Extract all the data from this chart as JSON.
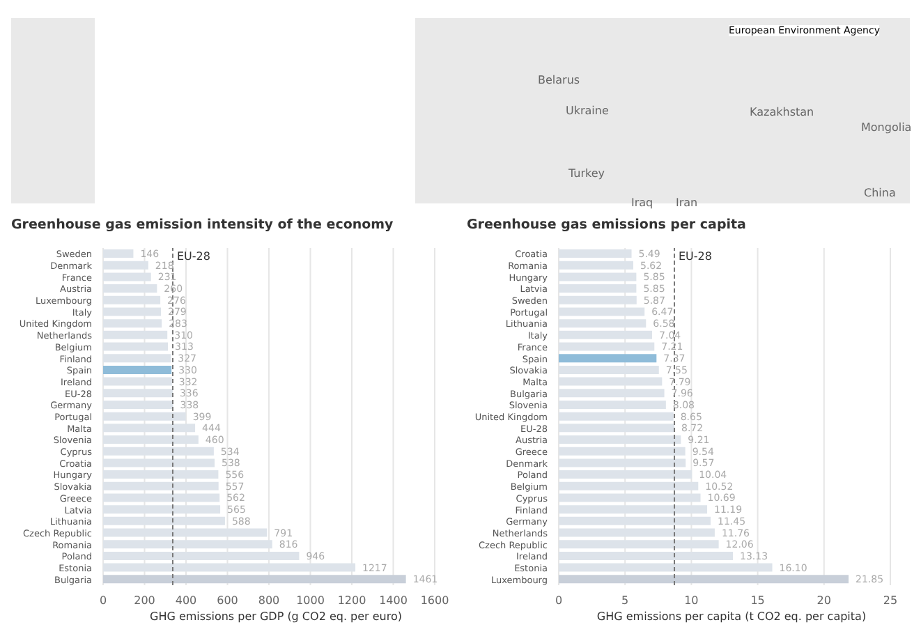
{
  "chart_data": [
    {
      "type": "other",
      "annotations": [
        "European Environment Agency",
        "Belarus",
        "Ukraine",
        "Kazakhstan",
        "Mongolia",
        "Turkey",
        "Iraq",
        "Iran",
        "China"
      ]
    },
    {
      "type": "bar",
      "orientation": "horizontal",
      "title": "Greenhouse gas emission intensity of the economy",
      "xlabel": "GHG emissions per GDP (g CO2 eq. per euro)",
      "categories": [
        "Sweden",
        "Denmark",
        "France",
        "Austria",
        "Luxembourg",
        "Italy",
        "United Kingdom",
        "Netherlands",
        "Belgium",
        "Finland",
        "Spain",
        "Ireland",
        "EU-28",
        "Germany",
        "Portugal",
        "Malta",
        "Slovenia",
        "Cyprus",
        "Croatia",
        "Hungary",
        "Slovakia",
        "Greece",
        "Latvia",
        "Lithuania",
        "Czech Republic",
        "Romania",
        "Poland",
        "Estonia",
        "Bulgaria"
      ],
      "values": [
        146,
        218,
        231,
        260,
        276,
        279,
        283,
        310,
        313,
        327,
        330,
        332,
        336,
        338,
        399,
        444,
        460,
        534,
        538,
        556,
        557,
        562,
        565,
        588,
        791,
        816,
        946,
        1217,
        1461
      ],
      "colors": [
        "#dde3ea",
        "#dde3ea",
        "#dde3ea",
        "#dde3ea",
        "#dde3ea",
        "#dde3ea",
        "#dde3ea",
        "#dde3ea",
        "#dde3ea",
        "#dde3ea",
        "#8fbcd9",
        "#dde3ea",
        "#dde3ea",
        "#dde3ea",
        "#dde3ea",
        "#dde3ea",
        "#dde3ea",
        "#dde3ea",
        "#dde3ea",
        "#dde3ea",
        "#dde3ea",
        "#dde3ea",
        "#dde3ea",
        "#dde3ea",
        "#dde3ea",
        "#dde3ea",
        "#dde3ea",
        "#dde3ea",
        "#c8cfd9"
      ],
      "xlim": [
        0,
        1600
      ],
      "xticks": [
        0,
        200,
        400,
        600,
        800,
        1000,
        1200,
        1400,
        1600
      ],
      "grid": "x",
      "data_labels": true,
      "ref_lines": [
        {
          "axis": "x",
          "value": 336,
          "label": "EU-28",
          "color": "#777777",
          "line_style": "dashed"
        }
      ]
    },
    {
      "type": "bar",
      "orientation": "horizontal",
      "title": "Greenhouse gas emissions per capita",
      "xlabel": "GHG emissions per capita (t CO2 eq. per capita)",
      "categories": [
        "Croatia",
        "Romania",
        "Hungary",
        "Latvia",
        "Sweden",
        "Portugal",
        "Lithuania",
        "Italy",
        "France",
        "Spain",
        "Slovakia",
        "Malta",
        "Bulgaria",
        "Slovenia",
        "United Kingdom",
        "EU-28",
        "Austria",
        "Greece",
        "Denmark",
        "Poland",
        "Belgium",
        "Cyprus",
        "Finland",
        "Germany",
        "Netherlands",
        "Czech Republic",
        "Ireland",
        "Estonia",
        "Luxembourg"
      ],
      "values": [
        5.49,
        5.62,
        5.85,
        5.85,
        5.87,
        6.47,
        6.58,
        7.04,
        7.21,
        7.37,
        7.55,
        7.79,
        7.96,
        8.08,
        8.65,
        8.72,
        9.21,
        9.54,
        9.57,
        10.04,
        10.52,
        10.69,
        11.19,
        11.45,
        11.76,
        12.06,
        13.13,
        16.1,
        21.85
      ],
      "value_labels": [
        "5.49",
        "5.62",
        "5.85",
        "5.85",
        "5.87",
        "6.47",
        "6.58",
        "7.04",
        "7.21",
        "7.37",
        "7.55",
        "7.79",
        "7.96",
        "8.08",
        "8.65",
        "8.72",
        "9.21",
        "9.54",
        "9.57",
        "10.04",
        "10.52",
        "10.69",
        "11.19",
        "11.45",
        "11.76",
        "12.06",
        "13.13",
        "16.10",
        "21.85"
      ],
      "colors": [
        "#dde3ea",
        "#dde3ea",
        "#dde3ea",
        "#dde3ea",
        "#dde3ea",
        "#dde3ea",
        "#dde3ea",
        "#dde3ea",
        "#dde3ea",
        "#8fbcd9",
        "#dde3ea",
        "#dde3ea",
        "#dde3ea",
        "#dde3ea",
        "#dde3ea",
        "#dde3ea",
        "#dde3ea",
        "#dde3ea",
        "#dde3ea",
        "#dde3ea",
        "#dde3ea",
        "#dde3ea",
        "#dde3ea",
        "#dde3ea",
        "#dde3ea",
        "#dde3ea",
        "#dde3ea",
        "#dde3ea",
        "#c8cfd9"
      ],
      "xlim": [
        0,
        25
      ],
      "xticks": [
        0,
        5,
        10,
        15,
        20,
        25
      ],
      "grid": "x",
      "ref_lines": [
        {
          "axis": "x",
          "value": 8.72,
          "label": "EU-28",
          "color": "#777777",
          "line_style": "dashed"
        }
      ]
    }
  ]
}
